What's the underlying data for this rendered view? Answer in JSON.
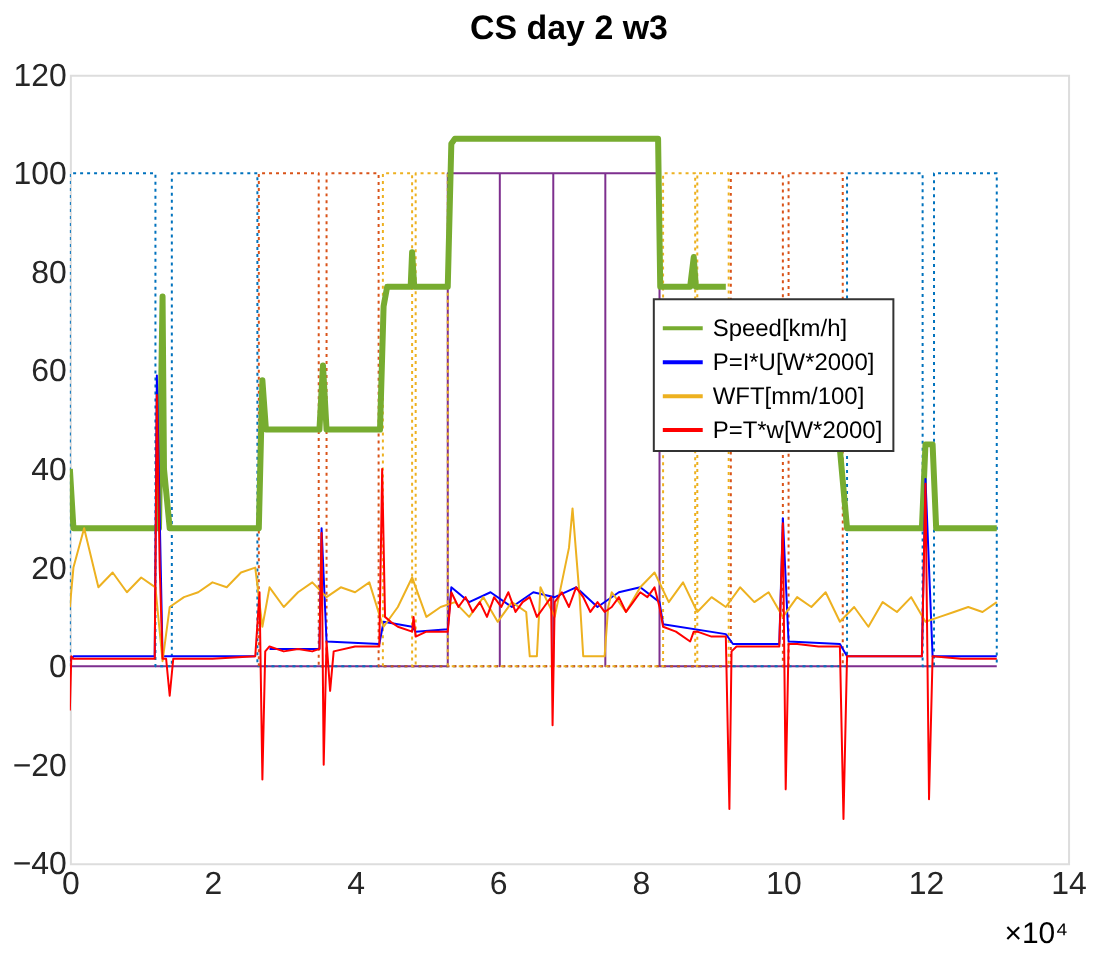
{
  "chart_data": {
    "type": "line",
    "title": "CS day 2 w3",
    "xlim": [
      0,
      14
    ],
    "xticks": [
      0,
      2,
      4,
      6,
      8,
      10,
      12,
      14
    ],
    "ylim": [
      -40,
      120
    ],
    "yticks": [
      -40,
      -20,
      0,
      20,
      40,
      60,
      80,
      100,
      120
    ],
    "grid": false,
    "legend": "right",
    "annotations": [
      "×10⁴"
    ],
    "series": [
      {
        "name": "Speed[km/h]",
        "color": "#77ac30",
        "line_style": "solid",
        "x": [
          0,
          0.05,
          0.5,
          1.2,
          1.25,
          1.3,
          1.32,
          1.4,
          2.0,
          2.65,
          2.7,
          2.75,
          3.0,
          3.5,
          3.55,
          3.6,
          3.65,
          4.0,
          4.35,
          4.4,
          4.45,
          4.78,
          4.8,
          4.83,
          5.3,
          5.35,
          5.4,
          6.5,
          8.25,
          8.28,
          8.3,
          8.7,
          8.75,
          8.78,
          9.2,
          9.25,
          10.75,
          10.8,
          10.9,
          11.5,
          11.95,
          12.0,
          12.1,
          12.15,
          13.0
        ],
        "values": [
          40,
          28,
          28,
          28,
          28,
          75,
          40,
          28,
          28,
          28,
          58,
          48,
          48,
          48,
          61,
          48,
          48,
          48,
          48,
          73,
          77,
          77,
          84,
          77,
          77,
          106,
          107,
          107,
          107,
          77,
          77,
          77,
          83,
          77,
          77,
          null,
          null,
          44,
          28,
          28,
          28,
          45,
          45,
          28,
          28
        ]
      },
      {
        "name": "P=I*U[W*2000]",
        "color": "#0000ff",
        "line_style": "solid",
        "x": [
          0,
          0.05,
          1.19,
          1.22,
          1.3,
          2.6,
          2.7,
          2.8,
          3.5,
          3.53,
          3.6,
          4.34,
          4.4,
          4.8,
          4.85,
          5.3,
          5.35,
          5.6,
          5.9,
          6.2,
          6.5,
          6.8,
          7.1,
          7.4,
          7.7,
          8.0,
          8.27,
          8.32,
          9.2,
          9.3,
          9.95,
          10.0,
          10.08,
          10.8,
          10.9,
          11.95,
          12.0,
          12.1,
          13.0
        ],
        "values": [
          1,
          2,
          2,
          59,
          2,
          2,
          null,
          3.5,
          3.5,
          28,
          5,
          4.5,
          9,
          8,
          7,
          7.5,
          16,
          13,
          15,
          12,
          15,
          14,
          16,
          12,
          15,
          16,
          13,
          8.5,
          6.5,
          4.5,
          4.5,
          30,
          5,
          4.5,
          2,
          2,
          38,
          2,
          2
        ]
      },
      {
        "name": "WFT[mm/100]",
        "color": "#edb120",
        "line_style": "solid",
        "x": [
          0,
          0.05,
          0.2,
          0.4,
          0.6,
          0.8,
          1.0,
          1.2,
          1.3,
          1.4,
          1.6,
          1.8,
          2.0,
          2.2,
          2.4,
          2.6,
          2.7,
          2.8,
          3.0,
          3.2,
          3.4,
          3.6,
          3.8,
          4.0,
          4.2,
          4.35,
          4.4,
          4.6,
          4.8,
          5.0,
          5.2,
          5.4,
          5.6,
          5.8,
          6.0,
          6.2,
          6.4,
          6.45,
          6.55,
          6.6,
          6.8,
          7.0,
          7.05,
          7.15,
          7.2,
          7.5,
          7.55,
          7.6,
          7.8,
          8.0,
          8.2,
          8.4,
          8.6,
          8.8,
          9.0,
          9.2,
          9.4,
          9.6,
          9.8,
          10.0,
          10.2,
          10.4,
          10.6,
          10.8,
          11.0,
          11.2,
          11.4,
          11.6,
          11.8,
          12.0,
          12.2,
          12.4,
          12.6,
          12.8,
          13.0
        ],
        "values": [
          12,
          20,
          28,
          16,
          19,
          15,
          18,
          16,
          1,
          12,
          14,
          15,
          17,
          16,
          19,
          20,
          8,
          16,
          12,
          15,
          17,
          14,
          16,
          15,
          17,
          10,
          8,
          12,
          18,
          10,
          12,
          13,
          10,
          14,
          9,
          13,
          11,
          2,
          2,
          16,
          10,
          24,
          32,
          14,
          2,
          2,
          12,
          15,
          11,
          16,
          19,
          13,
          17,
          11,
          14,
          12,
          16,
          13,
          15,
          10,
          14,
          12,
          15,
          9,
          12,
          8,
          13,
          11,
          14,
          9,
          10,
          11,
          12,
          11,
          13
        ]
      },
      {
        "name": "P=T*w[W*2000]",
        "color": "#ff0000",
        "line_style": "solid",
        "x": [
          0,
          0.02,
          0.05,
          0.5,
          1.0,
          1.19,
          1.22,
          1.26,
          1.3,
          1.35,
          1.4,
          1.45,
          1.5,
          2.0,
          2.6,
          2.66,
          2.7,
          2.74,
          2.8,
          3.0,
          3.2,
          3.4,
          3.5,
          3.53,
          3.56,
          3.6,
          3.65,
          3.7,
          4.0,
          4.34,
          4.38,
          4.42,
          4.5,
          4.6,
          4.8,
          4.82,
          4.85,
          5.0,
          5.3,
          5.35,
          5.45,
          5.55,
          5.65,
          5.75,
          5.85,
          5.95,
          6.05,
          6.15,
          6.25,
          6.35,
          6.45,
          6.55,
          6.65,
          6.75,
          6.77,
          6.8,
          6.9,
          7.0,
          7.1,
          7.2,
          7.3,
          7.4,
          7.5,
          7.6,
          7.7,
          7.8,
          7.9,
          8.0,
          8.1,
          8.2,
          8.27,
          8.32,
          8.5,
          8.7,
          8.75,
          8.8,
          9.0,
          9.2,
          9.25,
          9.28,
          9.35,
          9.6,
          9.95,
          10.0,
          10.04,
          10.08,
          10.2,
          10.5,
          10.8,
          10.85,
          10.9,
          11.0,
          11.5,
          11.95,
          12.0,
          12.05,
          12.1,
          12.5,
          13.0
        ],
        "values": [
          -9,
          2,
          1.5,
          1.5,
          1.5,
          1.5,
          55,
          20,
          1.5,
          1.5,
          -6,
          1.5,
          1.5,
          1.5,
          2,
          15,
          -23,
          3,
          4,
          3,
          3.5,
          3,
          3.5,
          27,
          -20,
          5,
          -5,
          3,
          4,
          4,
          40,
          10,
          9,
          8,
          7,
          10,
          6,
          7,
          7,
          15,
          12,
          14,
          11,
          13,
          10,
          14,
          12,
          15,
          11,
          13,
          14,
          10,
          12,
          14,
          -12,
          13,
          15,
          12,
          16,
          14,
          11,
          13,
          11,
          12,
          14,
          11,
          13,
          15,
          14,
          16,
          12,
          8,
          7,
          5,
          7,
          7,
          6,
          6,
          -29,
          3,
          4,
          4,
          4,
          29,
          -25,
          4.5,
          4.5,
          4,
          4,
          -31,
          2,
          2,
          2,
          2,
          37,
          -27,
          2,
          1.5,
          1.5
        ]
      },
      {
        "color": "#7e2f8e",
        "line_style": "solid",
        "x": [
          0,
          5.3,
          5.3,
          6.03,
          6.03,
          6.03,
          6.78,
          6.78,
          6.78,
          7.51,
          7.51,
          7.51,
          8.27,
          8.27,
          13
        ],
        "values": [
          0,
          0,
          100,
          100,
          0,
          100,
          100,
          0,
          100,
          100,
          0,
          100,
          100,
          0,
          0
        ]
      },
      {
        "color": "#0072bd",
        "line_style": "dotted",
        "x": [
          0,
          0,
          1.2,
          1.2,
          1.43,
          1.43,
          2.63,
          2.63,
          10.9,
          10.9,
          11.96,
          11.96,
          12.12,
          12.12,
          13,
          13
        ],
        "values": [
          0,
          100,
          100,
          0,
          0,
          100,
          100,
          0,
          0,
          100,
          100,
          0,
          0,
          100,
          100,
          0
        ]
      },
      {
        "color": "#d95319",
        "line_style": "dotted",
        "x": [
          2.65,
          2.65,
          3.49,
          3.49,
          3.6,
          3.6,
          4.33,
          4.33,
          9.27,
          9.27,
          10.0,
          10.0,
          10.08,
          10.08,
          10.84,
          10.84
        ],
        "values": [
          0,
          100,
          100,
          0,
          0,
          100,
          100,
          0,
          0,
          100,
          100,
          0,
          0,
          100,
          100,
          0
        ]
      },
      {
        "color": "#edb120",
        "line_style": "dotted",
        "x": [
          4.39,
          4.39,
          4.8,
          4.8,
          4.85,
          4.85,
          5.3,
          5.3,
          8.32,
          8.32,
          8.77,
          8.77,
          8.8,
          8.8,
          9.24,
          9.24
        ],
        "values": [
          0,
          100,
          100,
          0,
          0,
          100,
          100,
          0,
          0,
          100,
          100,
          0,
          0,
          100,
          100,
          0
        ]
      }
    ]
  }
}
